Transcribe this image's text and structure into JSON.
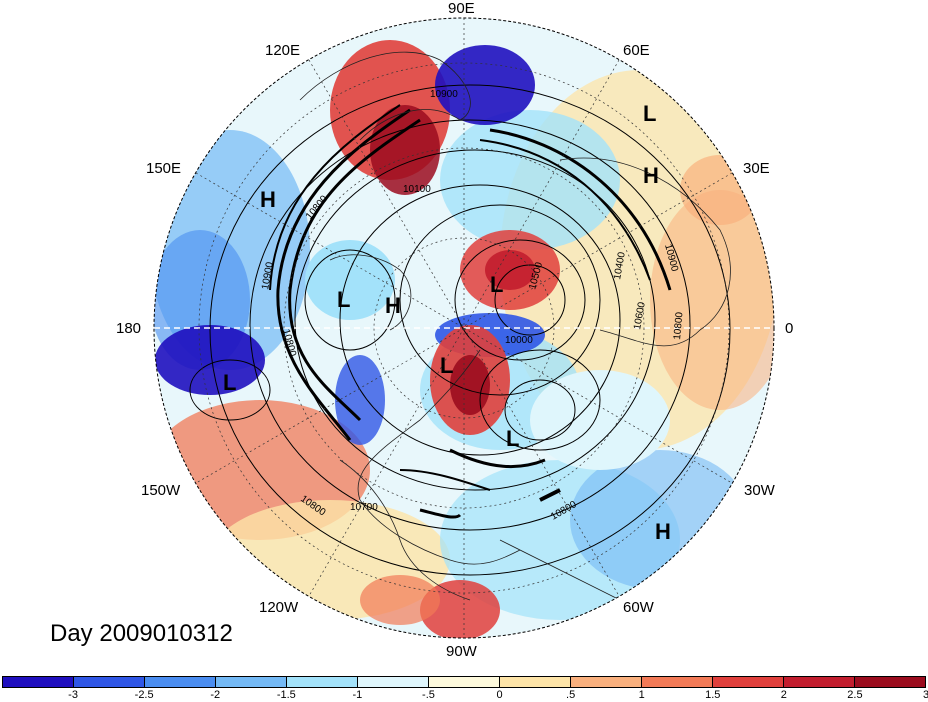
{
  "longitude_labels": {
    "n90e": "90E",
    "n120e": "120E",
    "n60e": "60E",
    "n150e": "150E",
    "n30e": "30E",
    "n180": "180",
    "n0": "0",
    "n150w": "150W",
    "n30w": "30W",
    "n120w": "120W",
    "n60w": "60W",
    "n90w": "90W"
  },
  "contour_labels": [
    "10900",
    "10100",
    "10800",
    "10900",
    "10800",
    "10500",
    "10400",
    "10900",
    "10600",
    "10800",
    "10000",
    "10800",
    "10700",
    "10800"
  ],
  "pressure_centers": [
    "L",
    "H",
    "H",
    "H",
    "L",
    "H",
    "L",
    "L",
    "L",
    "L",
    "H"
  ],
  "day_label": "Day 2009010312",
  "colorbar": {
    "colors": [
      "#1f0fbf",
      "#2f56e6",
      "#4a8df0",
      "#74b9f5",
      "#a3e2fa",
      "#dff6fc",
      "#fdf9dc",
      "#fde4a8",
      "#f9b07e",
      "#f27a57",
      "#e0403c",
      "#c21d2e",
      "#9b0c1e"
    ],
    "ticks": [
      "-3",
      "-2.5",
      "-2",
      "-1.5",
      "-1",
      "-.5",
      "0",
      ".5",
      "1",
      "1.5",
      "2",
      "2.5",
      "3"
    ]
  }
}
